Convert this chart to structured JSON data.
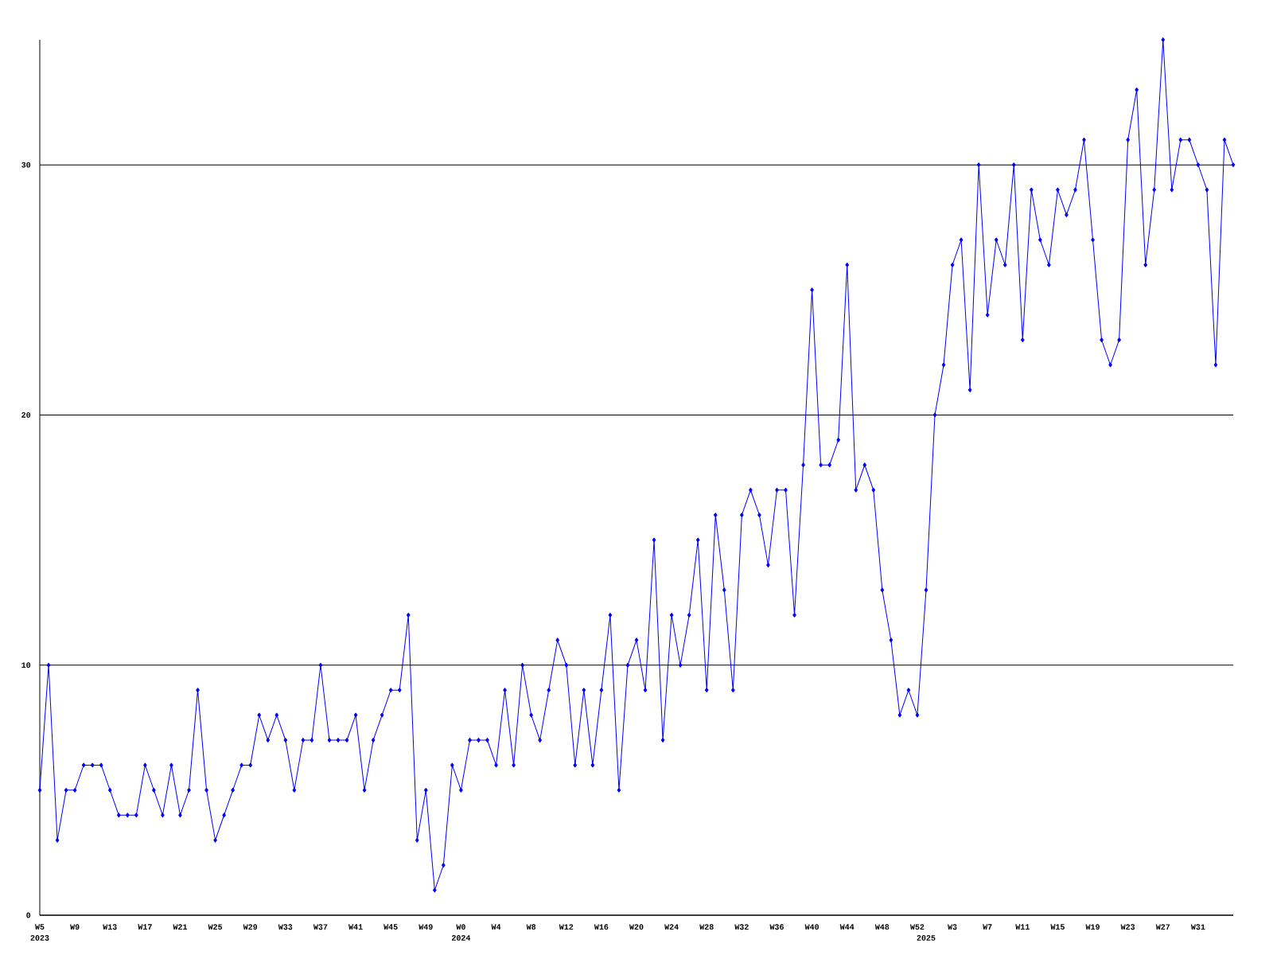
{
  "chart_data": {
    "type": "line",
    "categories": [
      "W5",
      null,
      null,
      null,
      "W9",
      null,
      null,
      null,
      "W13",
      null,
      null,
      null,
      "W17",
      null,
      null,
      null,
      "W21",
      null,
      null,
      null,
      "W25",
      null,
      null,
      null,
      "W29",
      null,
      null,
      null,
      "W33",
      null,
      null,
      null,
      "W37",
      null,
      null,
      null,
      "W41",
      null,
      null,
      null,
      "W45",
      null,
      null,
      null,
      "W49",
      null,
      null,
      null,
      "W0",
      null,
      null,
      null,
      "W4",
      null,
      null,
      null,
      "W8",
      null,
      null,
      null,
      "W12",
      null,
      null,
      null,
      "W16",
      null,
      null,
      null,
      "W20",
      null,
      null,
      null,
      "W24",
      null,
      null,
      null,
      "W28",
      null,
      null,
      null,
      "W32",
      null,
      null,
      null,
      "W36",
      null,
      null,
      null,
      "W40",
      null,
      null,
      null,
      "W44",
      null,
      null,
      null,
      "W48",
      null,
      null,
      null,
      "W52",
      null,
      null,
      null,
      "W3",
      null,
      null,
      null,
      "W7",
      null,
      null,
      null,
      "W11",
      null,
      null,
      null,
      "W15",
      null,
      null,
      null,
      "W19",
      null,
      null,
      null,
      "W23",
      null,
      null,
      null,
      "W27",
      null,
      null,
      null,
      "W31",
      null,
      null,
      null,
      null
    ],
    "series": [
      {
        "color": "#0000ff",
        "values": [
          5,
          10,
          3,
          5,
          5,
          6,
          6,
          6,
          5,
          4,
          4,
          4,
          6,
          5,
          4,
          6,
          4,
          5,
          9,
          5,
          3,
          4,
          5,
          6,
          6,
          8,
          7,
          8,
          7,
          5,
          7,
          7,
          10,
          7,
          7,
          7,
          8,
          5,
          7,
          8,
          9,
          9,
          12,
          3,
          5,
          1,
          2,
          6,
          5,
          7,
          7,
          7,
          6,
          9,
          6,
          10,
          8,
          7,
          9,
          11,
          10,
          6,
          9,
          6,
          9,
          12,
          5,
          10,
          11,
          9,
          15,
          7,
          12,
          10,
          12,
          15,
          9,
          16,
          13,
          9,
          16,
          17,
          16,
          14,
          17,
          17,
          12,
          18,
          25,
          18,
          18,
          19,
          26,
          17,
          18,
          17,
          13,
          11,
          8,
          9,
          8,
          13,
          20,
          22,
          26,
          27,
          21,
          30,
          24,
          27,
          26,
          30,
          23,
          29,
          27,
          26,
          29,
          28,
          29,
          31,
          27,
          23,
          22,
          23,
          31,
          33,
          26,
          29,
          35,
          29,
          31,
          31,
          30,
          29,
          22,
          31,
          30
        ]
      }
    ],
    "ylim": [
      0,
      35
    ],
    "yticks": [
      0,
      10,
      20,
      30
    ],
    "grid": "y",
    "marker": "diamond",
    "line_style": "solid",
    "annotations": [
      "2023",
      "2024",
      "2025"
    ]
  }
}
